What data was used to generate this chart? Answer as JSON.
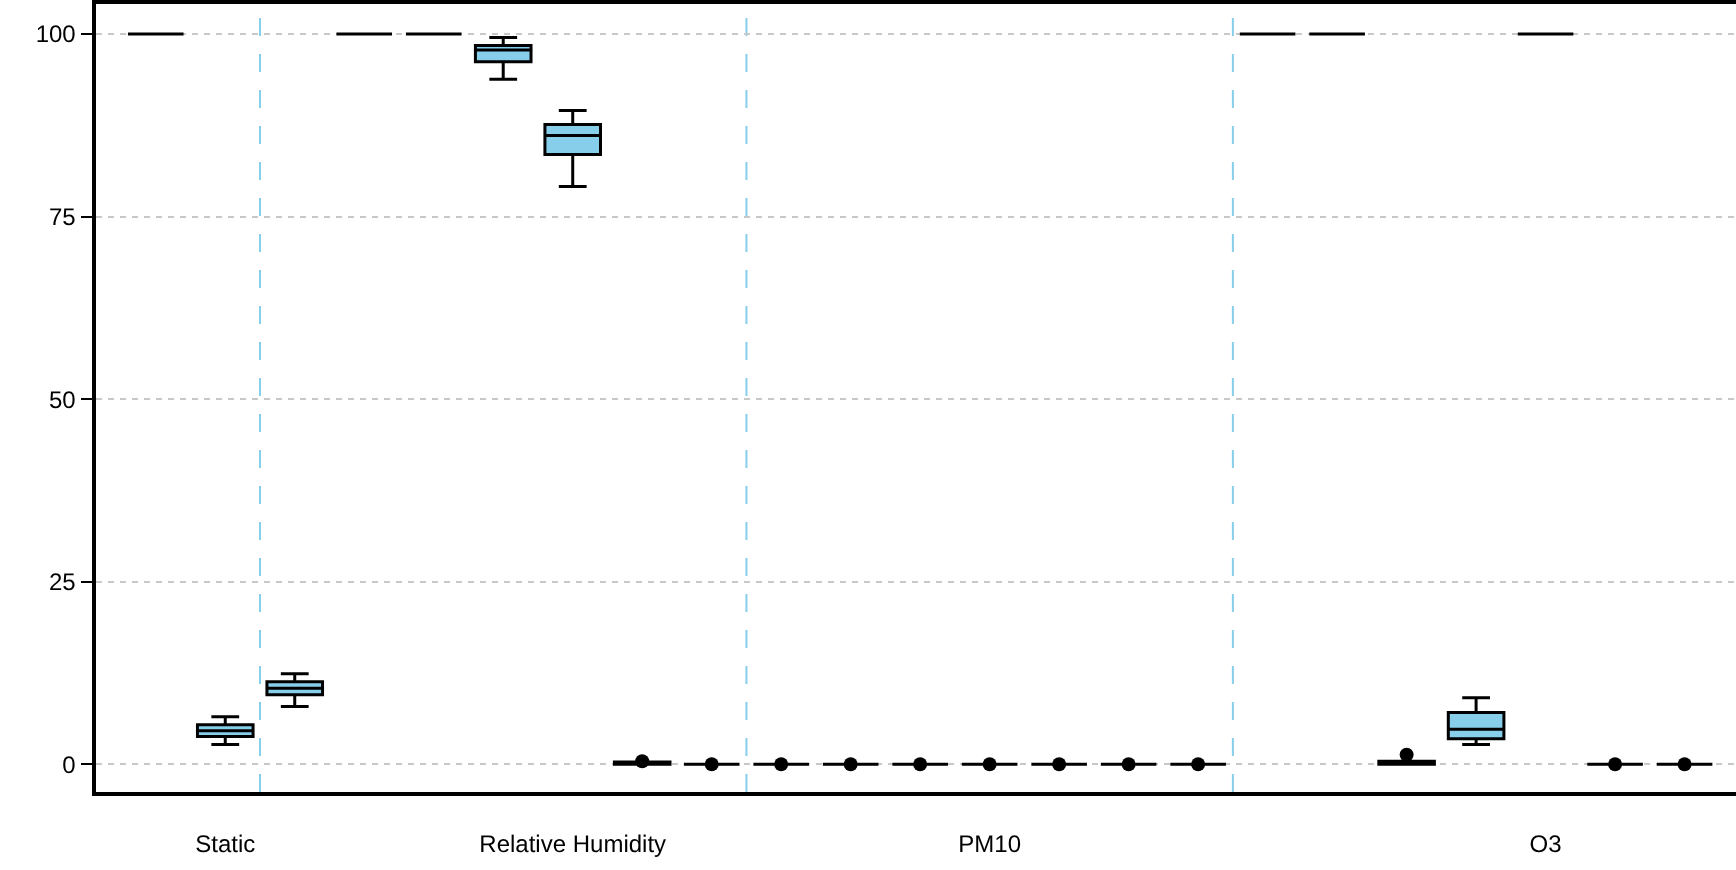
{
  "chart_data": {
    "type": "box",
    "colors": [
      "#000000",
      "#87ceeb",
      "#87ceeb",
      "#000000",
      "#000000",
      "#87ceeb",
      "#87ceeb",
      "#000000",
      "#000000",
      "#000000",
      "#000000",
      "#000000",
      "#000000",
      "#000000",
      "#000000",
      "#000000",
      "#000000",
      "#000000",
      "#000000",
      "#87ceeb",
      "#000000",
      "#000000",
      "#000000"
    ],
    "categories": [
      null,
      "Static",
      null,
      null,
      null,
      null,
      "Relative Humidity",
      null,
      null,
      null,
      null,
      null,
      "PM10",
      null,
      null,
      null,
      null,
      null,
      null,
      null,
      "O3",
      null,
      null
    ],
    "boxes": [
      {
        "low": 100,
        "q1": 100,
        "median": 100,
        "q3": 100,
        "high": 100
      },
      {
        "low": 2.7,
        "q1": 3.8,
        "median": 4.6,
        "q3": 5.4,
        "high": 6.5
      },
      {
        "low": 7.9,
        "q1": 9.5,
        "median": 10.4,
        "q3": 11.3,
        "high": 12.4
      },
      {
        "low": 100,
        "q1": 100,
        "median": 100,
        "q3": 100,
        "high": 100
      },
      {
        "low": 100,
        "q1": 100,
        "median": 100,
        "q3": 100,
        "high": 100
      },
      {
        "low": 93.8,
        "q1": 96.2,
        "median": 97.8,
        "q3": 98.4,
        "high": 99.5
      },
      {
        "low": 79.1,
        "q1": 83.5,
        "median": 86.1,
        "q3": 87.6,
        "high": 89.5
      },
      {
        "low": 0,
        "q1": 0,
        "median": 0.2,
        "q3": 0.3,
        "high": 0.3,
        "outliers": [
          0.4
        ]
      },
      {
        "low": 0,
        "q1": 0,
        "median": 0,
        "q3": 0,
        "high": 0,
        "outliers": [
          0
        ]
      },
      {
        "low": 0,
        "q1": 0,
        "median": 0,
        "q3": 0,
        "high": 0,
        "outliers": [
          0
        ]
      },
      {
        "low": 0,
        "q1": 0,
        "median": 0,
        "q3": 0,
        "high": 0,
        "outliers": [
          0
        ]
      },
      {
        "low": 0,
        "q1": 0,
        "median": 0,
        "q3": 0,
        "high": 0,
        "outliers": [
          0
        ]
      },
      {
        "low": 0,
        "q1": 0,
        "median": 0,
        "q3": 0,
        "high": 0,
        "outliers": [
          0
        ]
      },
      {
        "low": 0,
        "q1": 0,
        "median": 0,
        "q3": 0,
        "high": 0,
        "outliers": [
          0
        ]
      },
      {
        "low": 0,
        "q1": 0,
        "median": 0,
        "q3": 0,
        "high": 0,
        "outliers": [
          0
        ]
      },
      {
        "low": 0,
        "q1": 0,
        "median": 0,
        "q3": 0,
        "high": 0,
        "outliers": [
          0
        ]
      },
      {
        "low": 100,
        "q1": 100,
        "median": 100,
        "q3": 100,
        "high": 100
      },
      {
        "low": 100,
        "q1": 100,
        "median": 100,
        "q3": 100,
        "high": 100
      },
      {
        "low": 0,
        "q1": 0,
        "median": 0.2,
        "q3": 0.4,
        "high": 0.4,
        "outliers": [
          1.3
        ]
      },
      {
        "low": 2.7,
        "q1": 3.5,
        "median": 4.8,
        "q3": 7.1,
        "high": 9.1
      },
      {
        "low": 100,
        "q1": 100,
        "median": 100,
        "q3": 100,
        "high": 100
      },
      {
        "low": 0,
        "q1": 0,
        "median": 0,
        "q3": 0,
        "high": 0,
        "outliers": [
          0
        ]
      },
      {
        "low": 0,
        "q1": 0,
        "median": 0,
        "q3": 0,
        "high": 0,
        "outliers": [
          0
        ]
      }
    ],
    "ylim": [
      -3.8,
      104.1
    ],
    "yticks": [
      0,
      25,
      50,
      75,
      100
    ],
    "grid": "y"
  }
}
